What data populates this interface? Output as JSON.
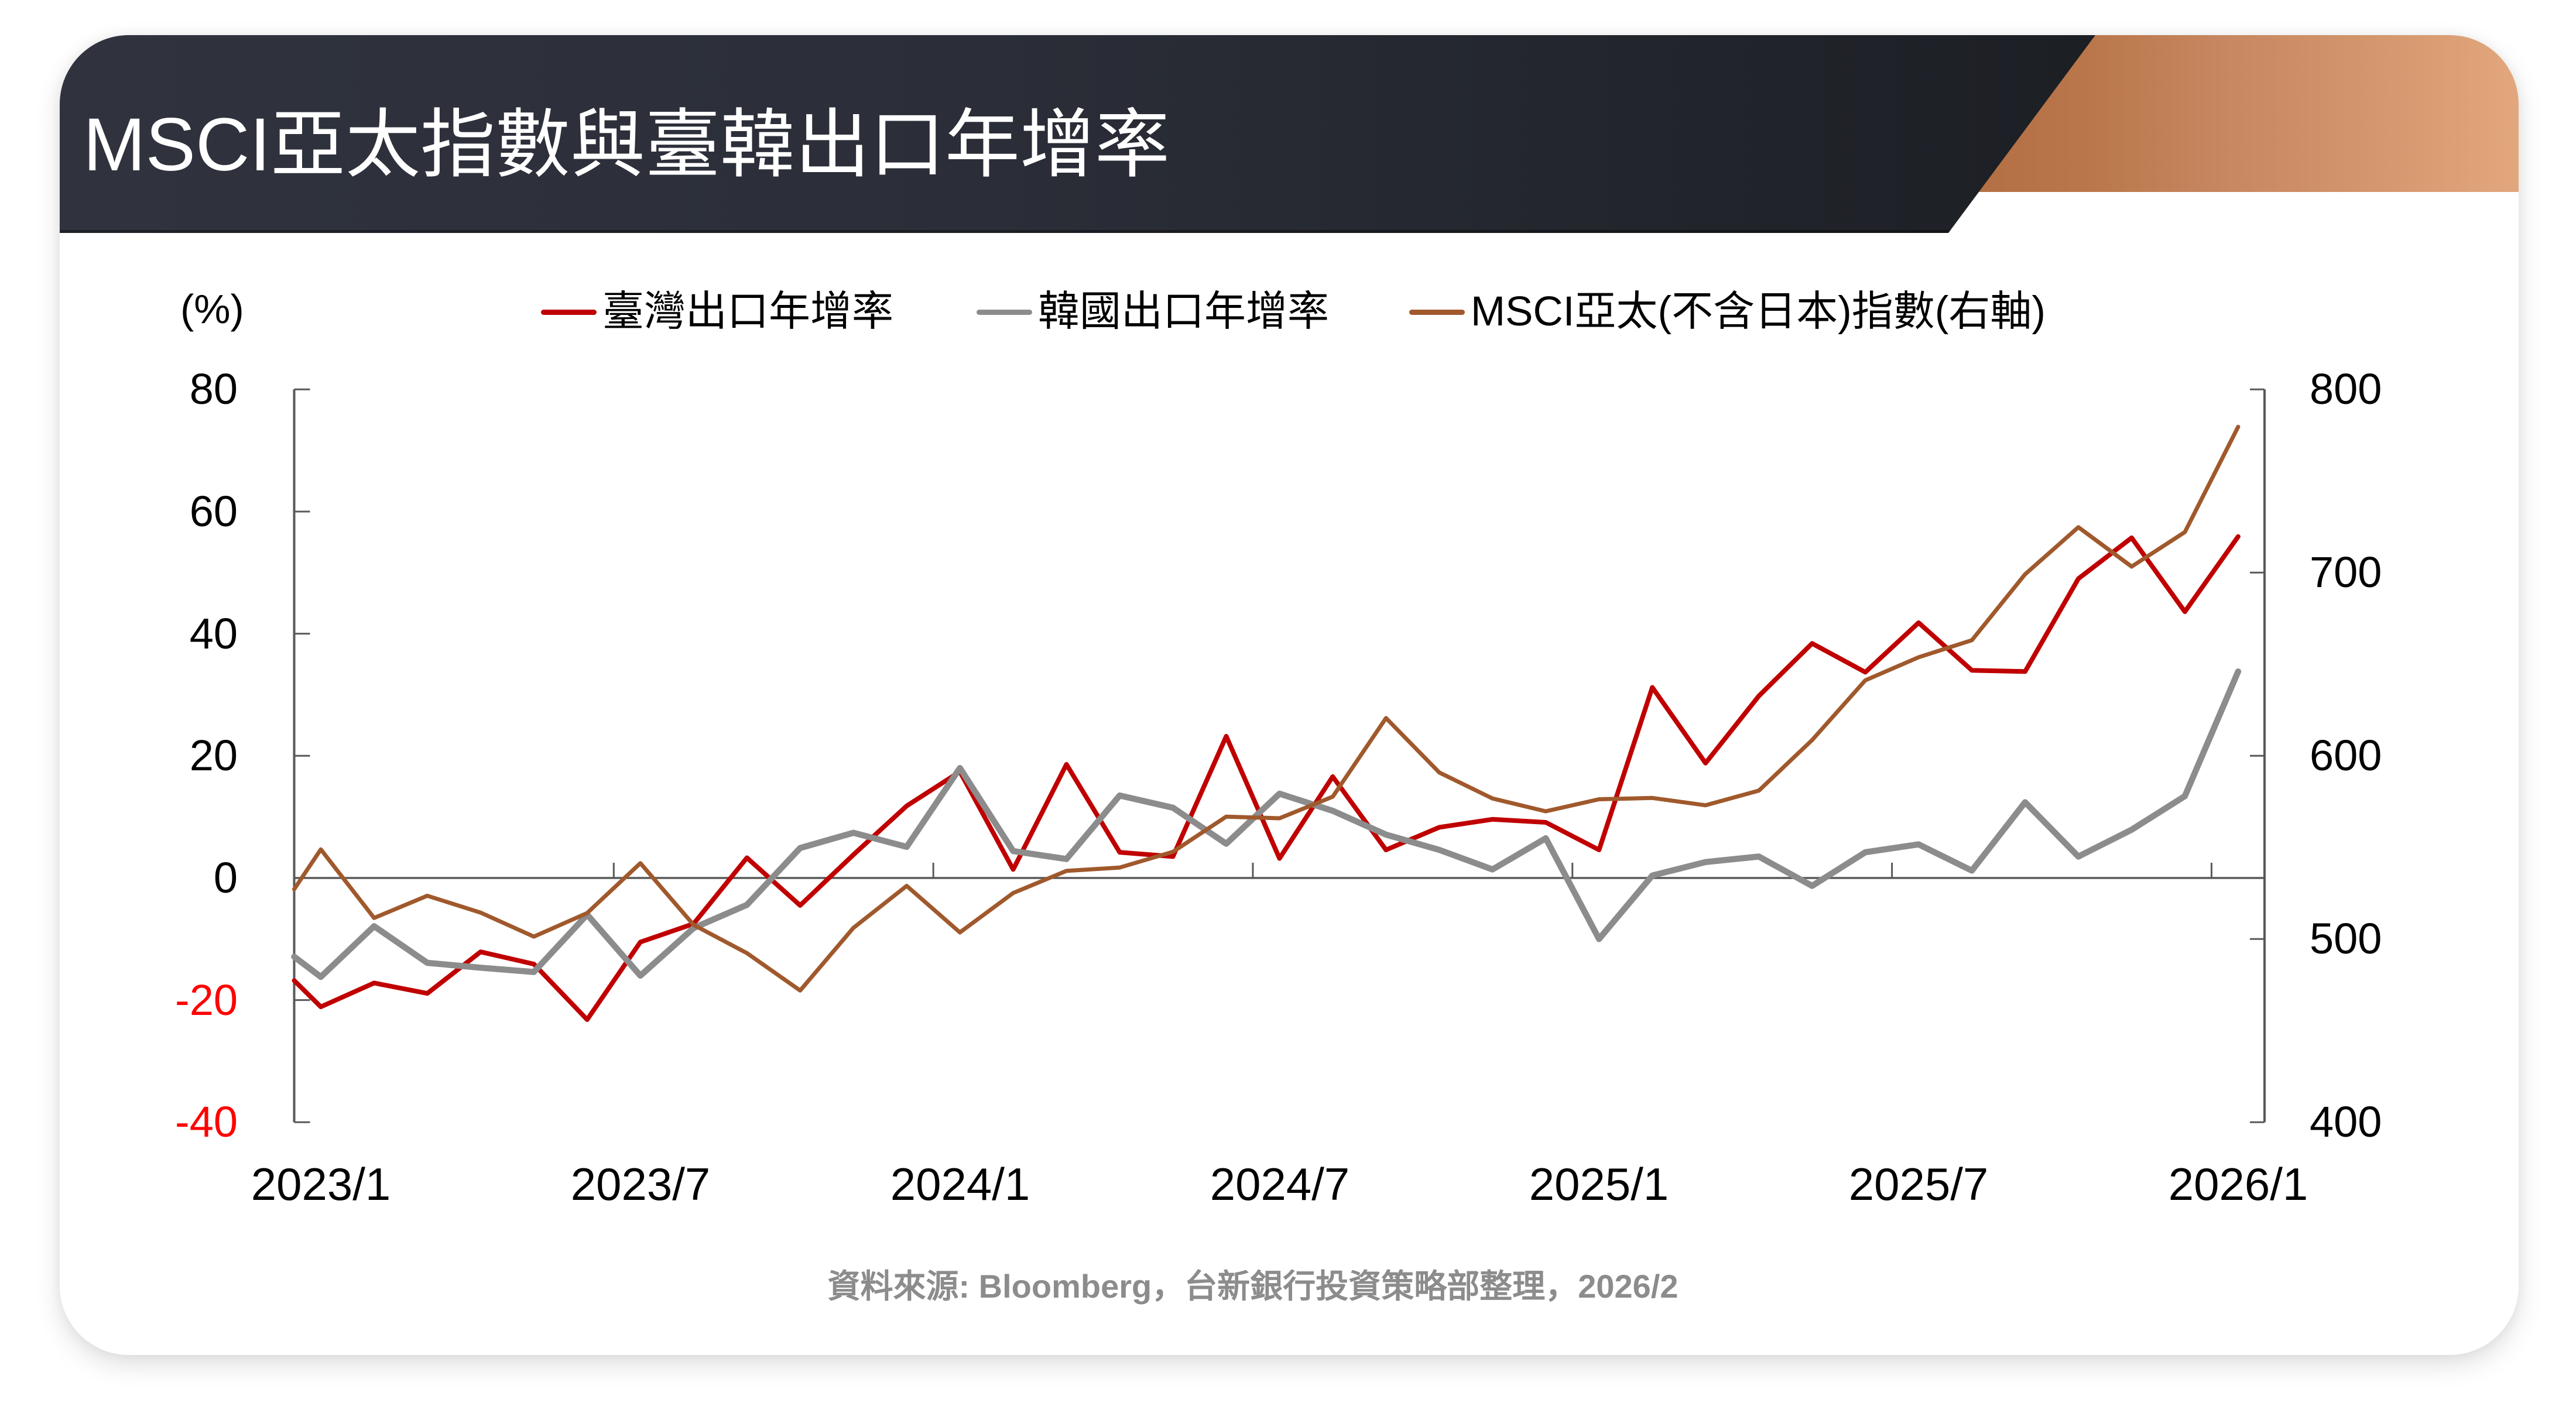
{
  "header": {
    "title": "MSCI亞太指數與臺韓出口年增率"
  },
  "theme": {
    "header_dark": "#2E313B",
    "header_accent_copper": "#D0936A",
    "footer_text": "#8C8C8C",
    "axis_color": "#595959"
  },
  "chart": {
    "unit_label": "(%)",
    "left_axis_ticks": [
      {
        "label": "80",
        "color": "#000000"
      },
      {
        "label": "60",
        "color": "#000000"
      },
      {
        "label": "40",
        "color": "#000000"
      },
      {
        "label": "20",
        "color": "#000000"
      },
      {
        "label": "0",
        "color": "#000000"
      },
      {
        "label": "-20",
        "color": "#FF0000"
      },
      {
        "label": "-40",
        "color": "#FF0000"
      }
    ],
    "right_axis_ticks": [
      {
        "label": "800"
      },
      {
        "label": "700"
      },
      {
        "label": "600"
      },
      {
        "label": "500"
      },
      {
        "label": "400"
      }
    ],
    "x_axis_labels": [
      "2023/1",
      "2023/7",
      "2024/1",
      "2024/7",
      "2025/1",
      "2025/7",
      "2026/1"
    ]
  },
  "footer": {
    "source": "資料來源: Bloomberg，台新銀行投資策略部整理，2026/2"
  },
  "chart_data": {
    "type": "line",
    "title": "MSCI亞太指數與臺韓出口年增率",
    "xlabel": "",
    "ylabel": "(%)",
    "y2label": "MSCI亞太(不含日本)指數",
    "ylim": [
      -40,
      80
    ],
    "y2lim": [
      400,
      800
    ],
    "y_ticks": [
      80,
      60,
      40,
      20,
      0,
      -20,
      -40
    ],
    "y2_ticks": [
      800,
      700,
      600,
      500,
      400
    ],
    "x_tick_labels": [
      "2023/1",
      "2023/7",
      "2024/1",
      "2024/7",
      "2025/1",
      "2025/7",
      "2026/1"
    ],
    "grid": false,
    "legend_position": "top",
    "x": [
      "2023/1",
      "2023/2",
      "2023/3",
      "2023/4",
      "2023/5",
      "2023/6",
      "2023/7",
      "2023/8",
      "2023/9",
      "2023/10",
      "2023/11",
      "2023/12",
      "2024/1",
      "2024/2",
      "2024/3",
      "2024/4",
      "2024/5",
      "2024/6",
      "2024/7",
      "2024/8",
      "2024/9",
      "2024/10",
      "2024/11",
      "2024/12",
      "2025/1",
      "2025/2",
      "2025/3",
      "2025/4",
      "2025/5",
      "2025/6",
      "2025/7",
      "2025/8",
      "2025/9",
      "2025/10",
      "2025/11",
      "2025/12",
      "2026/1"
    ],
    "series": [
      {
        "name": "臺灣出口年增率",
        "axis": "left",
        "color": "#C00000",
        "clipped_start": -16.8,
        "values": [
          -21.1,
          -17.2,
          -18.9,
          -12.1,
          -14.1,
          -23.2,
          -10.5,
          -7.5,
          3.3,
          -4.5,
          3.8,
          11.8,
          17.4,
          1.4,
          18.6,
          4.2,
          3.5,
          23.2,
          3.2,
          16.6,
          4.6,
          8.3,
          9.6,
          9.1,
          4.6,
          31.2,
          18.8,
          29.8,
          38.4,
          33.7,
          41.8,
          34.0,
          33.8,
          49.0,
          55.7,
          43.6,
          55.9
        ]
      },
      {
        "name": "韓國出口年增率",
        "axis": "left",
        "color": "#8C8C8C",
        "clipped_start": -12.9,
        "values": [
          -16.2,
          -7.9,
          -13.9,
          -14.7,
          -15.4,
          -6.0,
          -16.0,
          -8.2,
          -4.4,
          4.9,
          7.4,
          5.1,
          18.0,
          4.4,
          3.1,
          13.5,
          11.5,
          5.6,
          13.8,
          11.0,
          7.1,
          4.6,
          1.4,
          6.5,
          -10.0,
          0.4,
          2.6,
          3.5,
          -1.3,
          4.2,
          5.5,
          1.2,
          12.4,
          3.5,
          7.9,
          13.4,
          33.8
        ]
      },
      {
        "name": "MSCI亞太(不含日本)指數(右軸)",
        "axis": "right",
        "color": "#A0592C",
        "clipped_start": 527.2,
        "values": [
          548.9,
          511.5,
          523.6,
          514.4,
          501.3,
          514.2,
          541.4,
          507.7,
          492.3,
          471.9,
          506.1,
          529.0,
          503.6,
          525.1,
          537.2,
          539.0,
          547.6,
          566.8,
          565.9,
          577.7,
          620.6,
          590.9,
          576.7,
          569.7,
          576.3,
          577.0,
          573.0,
          581.0,
          608.6,
          641.2,
          653.8,
          663.1,
          699.1,
          724.8,
          703.3,
          722.1,
          779.6
        ]
      }
    ]
  }
}
